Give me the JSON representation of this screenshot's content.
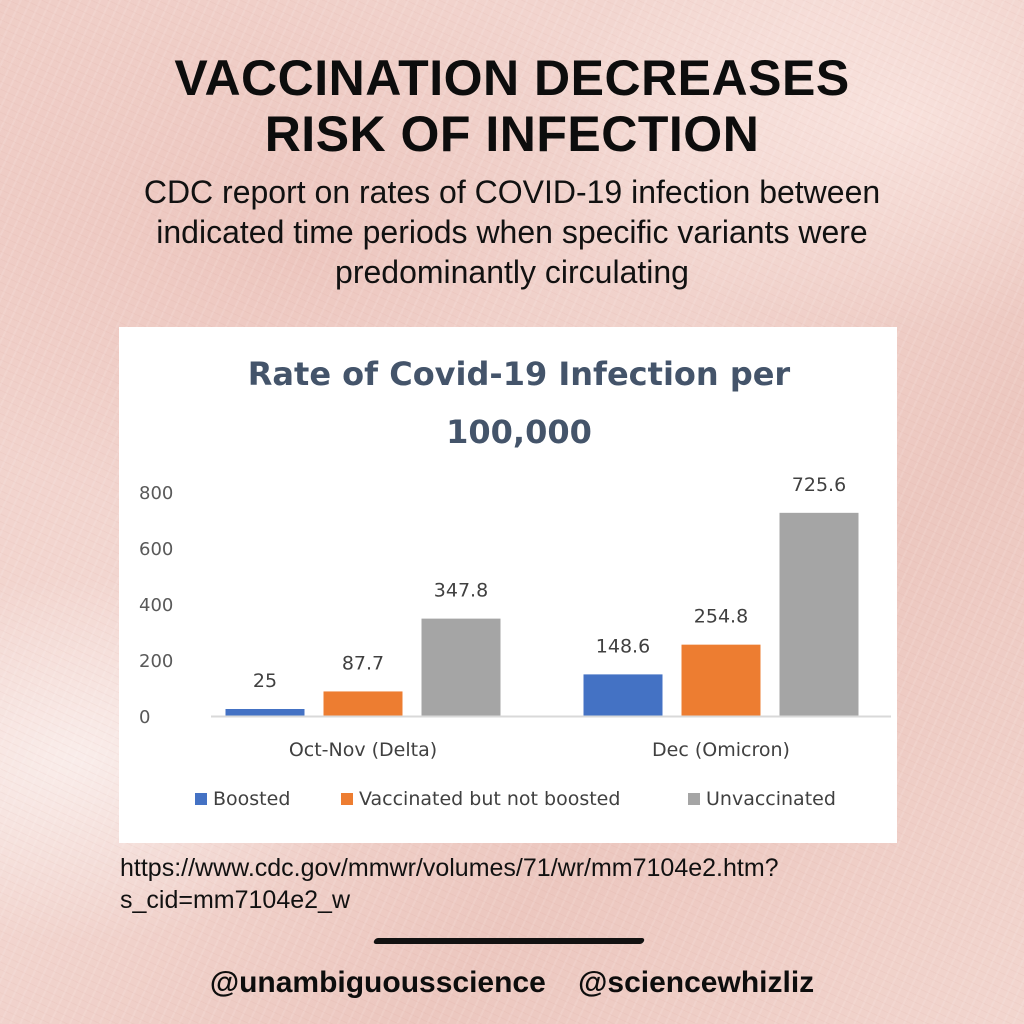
{
  "headline": {
    "line1": "VACCINATION DECREASES",
    "line2": "RISK OF INFECTION"
  },
  "subhead": {
    "line1": "CDC report on rates of COVID-19 infection between",
    "line2": "indicated time periods when specific variants were",
    "line3": "predominantly circulating"
  },
  "chart_data": {
    "type": "bar",
    "title_line1": "Rate of Covid-19 Infection per",
    "title_line2": "100,000",
    "categories": [
      "Oct-Nov (Delta)",
      "Dec (Omicron)"
    ],
    "series": [
      {
        "name": "Boosted",
        "values": [
          25,
          148.6
        ],
        "labels": [
          "25",
          "148.6"
        ],
        "color": "#4472c4"
      },
      {
        "name": "Vaccinated but not boosted",
        "values": [
          87.7,
          254.8
        ],
        "labels": [
          "87.7",
          "254.8"
        ],
        "color": "#ed7d31"
      },
      {
        "name": "Unvaccinated",
        "values": [
          347.8,
          725.6
        ],
        "labels": [
          "347.8",
          "725.6"
        ],
        "color": "#a5a5a5"
      }
    ],
    "y_ticks": [
      "0",
      "200",
      "400",
      "600",
      "800"
    ],
    "ylim": [
      0,
      800
    ],
    "grid": false,
    "legend": "bottom"
  },
  "source": {
    "line1": "https://www.cdc.gov/mmwr/volumes/71/wr/mm7104e2.htm?",
    "line2": "s_cid=mm7104e2_w"
  },
  "handles": {
    "first": "@unambiguousscience",
    "second": "@sciencewhizliz"
  }
}
